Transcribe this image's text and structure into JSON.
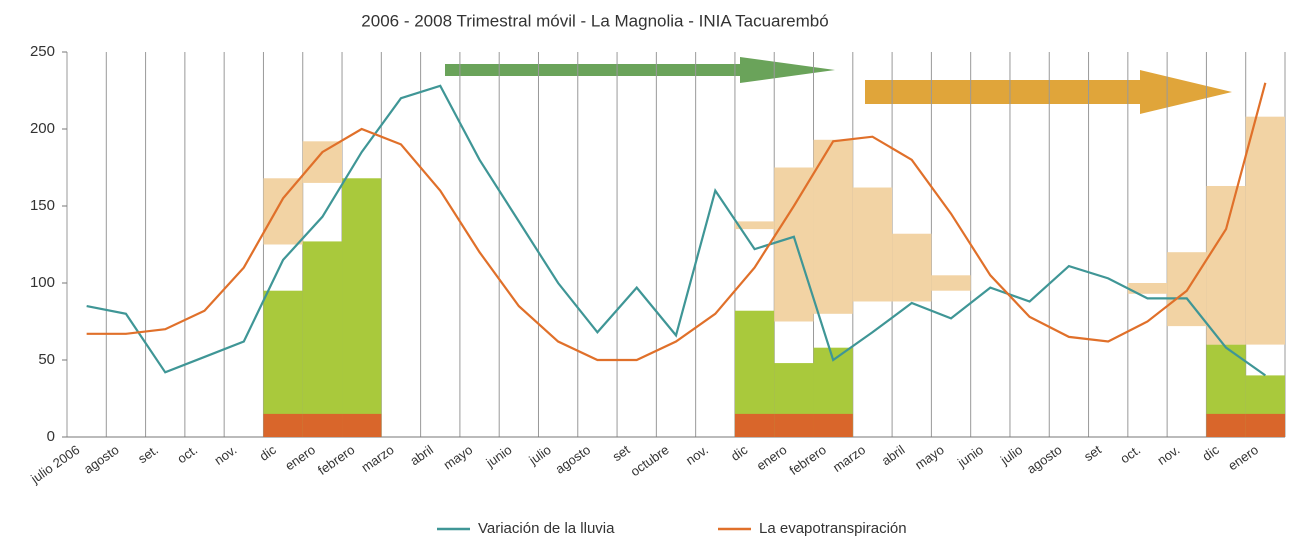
{
  "chart_data": {
    "type": "line",
    "title": "2006 - 2008 Trimestral móvil - La Magnolia - INIA Tacuarembó",
    "categories": [
      "julio 2006",
      "agosto",
      "set.",
      "oct.",
      "nov.",
      "dic",
      "enero",
      "febrero",
      "marzo",
      "abril",
      "mayo",
      "junio",
      "julio",
      "agosto",
      "set",
      "octubre",
      "nov.",
      "dic",
      "enero",
      "febrero",
      "marzo",
      "abril",
      "mayo",
      "junio",
      "julio",
      "agosto",
      "set",
      "oct.",
      "nov.",
      "dic",
      "enero"
    ],
    "series": [
      {
        "name": "Variación de la lluvia",
        "color": "#3f9696",
        "values": [
          85,
          80,
          42,
          52,
          62,
          115,
          143,
          185,
          220,
          228,
          180,
          140,
          100,
          68,
          97,
          66,
          160,
          122,
          130,
          50,
          68,
          87,
          77,
          97,
          88,
          111,
          103,
          90,
          90,
          58,
          40
        ]
      },
      {
        "name": "La evapotranspiración",
        "color": "#e0702a",
        "values": [
          67,
          67,
          70,
          82,
          110,
          155,
          185,
          200,
          190,
          160,
          120,
          85,
          62,
          50,
          50,
          62,
          80,
          110,
          150,
          192,
          195,
          180,
          145,
          105,
          78,
          65,
          62,
          75,
          95,
          135,
          230
        ]
      }
    ],
    "bars": {
      "color": "#a9c93c",
      "values": [
        null,
        null,
        null,
        null,
        null,
        95,
        127,
        168,
        null,
        null,
        null,
        null,
        null,
        null,
        null,
        null,
        null,
        82,
        48,
        58,
        null,
        null,
        null,
        null,
        null,
        null,
        null,
        null,
        null,
        60,
        40
      ]
    },
    "ranges": {
      "color": "#f2d3a4",
      "low": [
        null,
        null,
        null,
        null,
        null,
        125,
        165,
        null,
        null,
        null,
        null,
        null,
        null,
        null,
        null,
        null,
        null,
        135,
        75,
        80,
        88,
        88,
        95,
        null,
        null,
        null,
        null,
        93,
        72,
        60,
        60
      ],
      "high": [
        null,
        null,
        null,
        null,
        null,
        168,
        192,
        null,
        null,
        null,
        null,
        null,
        null,
        null,
        null,
        null,
        null,
        140,
        175,
        193,
        162,
        132,
        105,
        null,
        null,
        null,
        null,
        100,
        120,
        163,
        208
      ]
    },
    "base": {
      "color": "#d9662b",
      "values": [
        null,
        null,
        null,
        null,
        null,
        15,
        15,
        15,
        null,
        null,
        null,
        null,
        null,
        null,
        null,
        null,
        null,
        15,
        15,
        15,
        null,
        null,
        null,
        null,
        null,
        null,
        null,
        null,
        null,
        15,
        15
      ]
    },
    "ylim": [
      0,
      250
    ],
    "yticks": [
      0,
      50,
      100,
      150,
      200,
      250
    ]
  }
}
